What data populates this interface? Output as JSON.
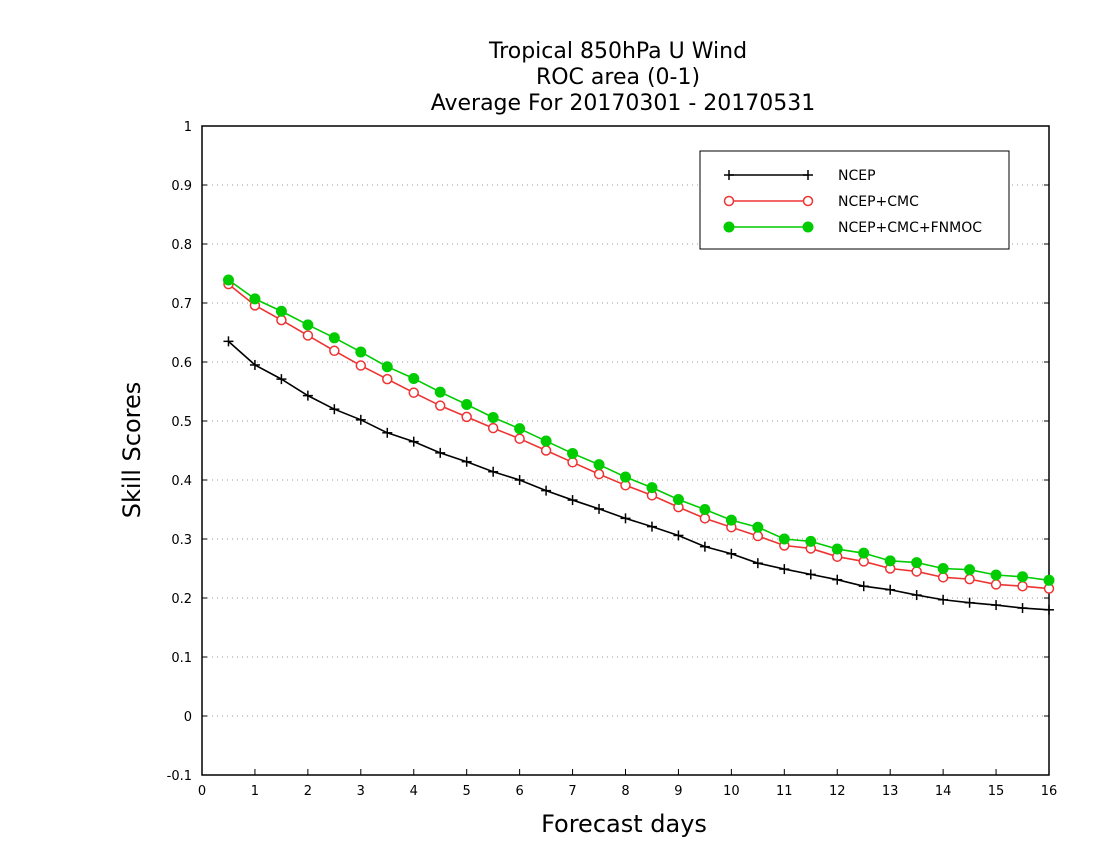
{
  "chart_data": {
    "type": "line",
    "title_lines": [
      "Tropical 850hPa U Wind",
      "ROC area (0-1)",
      "Average For 20170301 - 20170531"
    ],
    "xlabel": "Forecast days",
    "ylabel": "Skill Scores",
    "xlim": [
      0,
      16
    ],
    "ylim": [
      -0.1,
      1
    ],
    "x_ticks": [
      0,
      1,
      2,
      3,
      4,
      5,
      6,
      7,
      8,
      9,
      10,
      11,
      12,
      13,
      14,
      15,
      16
    ],
    "y_ticks": [
      -0.1,
      0,
      0.1,
      0.2,
      0.3,
      0.4,
      0.5,
      0.6,
      0.7,
      0.8,
      0.9,
      1
    ],
    "y_tick_labels": [
      "-0.1",
      "0",
      "0.1",
      "0.2",
      "0.3",
      "0.4",
      "0.5",
      "0.6",
      "0.7",
      "0.8",
      "0.9",
      "1"
    ],
    "grid": "horizontal dotted",
    "legend_position": "top-right",
    "x": [
      0.5,
      1,
      1.5,
      2,
      2.5,
      3,
      3.5,
      4,
      4.5,
      5,
      5.5,
      6,
      6.5,
      7,
      7.5,
      8,
      8.5,
      9,
      9.5,
      10,
      10.5,
      11,
      11.5,
      12,
      12.5,
      13,
      13.5,
      14,
      14.5,
      15,
      15.5,
      16
    ],
    "series": [
      {
        "name": "NCEP",
        "color": "#000000",
        "marker": "plus",
        "values": [
          0.635,
          0.595,
          0.571,
          0.543,
          0.52,
          0.502,
          0.48,
          0.465,
          0.446,
          0.431,
          0.414,
          0.4,
          0.382,
          0.366,
          0.351,
          0.335,
          0.321,
          0.306,
          0.287,
          0.275,
          0.259,
          0.249,
          0.24,
          0.231,
          0.22,
          0.214,
          0.205,
          0.197,
          0.192,
          0.188,
          0.183,
          0.18
        ]
      },
      {
        "name": "NCEP+CMC",
        "color": "#ee3333",
        "marker": "open-circle",
        "values": [
          0.732,
          0.696,
          0.671,
          0.645,
          0.619,
          0.594,
          0.571,
          0.548,
          0.526,
          0.507,
          0.488,
          0.47,
          0.45,
          0.43,
          0.41,
          0.391,
          0.374,
          0.354,
          0.335,
          0.32,
          0.305,
          0.289,
          0.284,
          0.27,
          0.262,
          0.25,
          0.245,
          0.235,
          0.232,
          0.223,
          0.22,
          0.216
        ]
      },
      {
        "name": "NCEP+CMC+FNMOC",
        "color": "#00cc00",
        "marker": "filled-circle",
        "values": [
          0.739,
          0.707,
          0.686,
          0.663,
          0.641,
          0.617,
          0.592,
          0.572,
          0.549,
          0.528,
          0.506,
          0.487,
          0.466,
          0.445,
          0.426,
          0.405,
          0.387,
          0.367,
          0.35,
          0.332,
          0.32,
          0.3,
          0.296,
          0.283,
          0.276,
          0.263,
          0.26,
          0.25,
          0.248,
          0.239,
          0.236,
          0.23
        ]
      }
    ]
  }
}
